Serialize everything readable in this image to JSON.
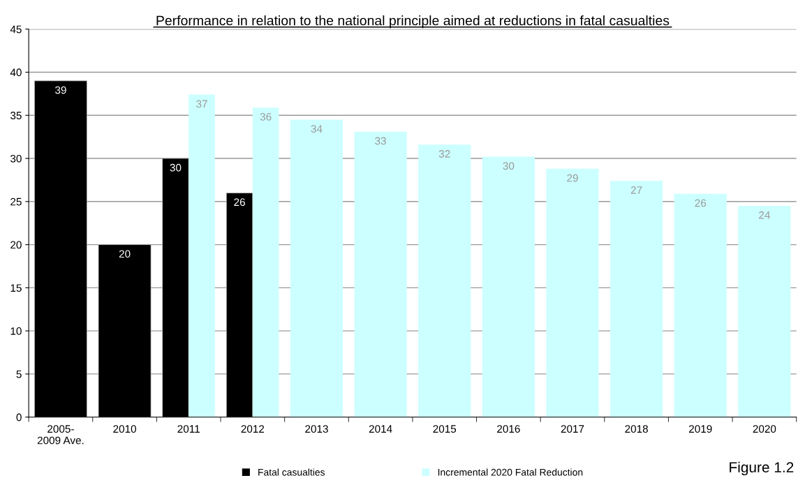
{
  "chart_data": {
    "type": "bar",
    "title": "Performance in relation to the national principle aimed at reductions in fatal casualties",
    "categories": [
      "2005-\n2009 Ave.",
      "2010",
      "2011",
      "2012",
      "2013",
      "2014",
      "2015",
      "2016",
      "2017",
      "2018",
      "2019",
      "2020"
    ],
    "series": [
      {
        "name": "Fatal casualties",
        "color": "#000000",
        "values": [
          39,
          20,
          30,
          26,
          null,
          null,
          null,
          null,
          null,
          null,
          null,
          null
        ],
        "value_labels": [
          "39",
          "20",
          "30",
          "26",
          null,
          null,
          null,
          null,
          null,
          null,
          null,
          null
        ]
      },
      {
        "name": "Incremental 2020 Fatal Reduction",
        "color": "#ccffff",
        "values": [
          null,
          null,
          37.4,
          35.9,
          34.5,
          33.1,
          31.6,
          30.2,
          28.8,
          27.4,
          25.9,
          24.5
        ],
        "value_labels": [
          null,
          null,
          "37",
          "36",
          "34",
          "33",
          "32",
          "30",
          "29",
          "27",
          "26",
          "24"
        ]
      }
    ],
    "ylim": [
      0,
      45
    ],
    "yticks": [
      0,
      5,
      10,
      15,
      20,
      25,
      30,
      35,
      40,
      45
    ],
    "grid": "y",
    "legend": "bottom",
    "annotations": [
      "Figure 1.2"
    ]
  }
}
